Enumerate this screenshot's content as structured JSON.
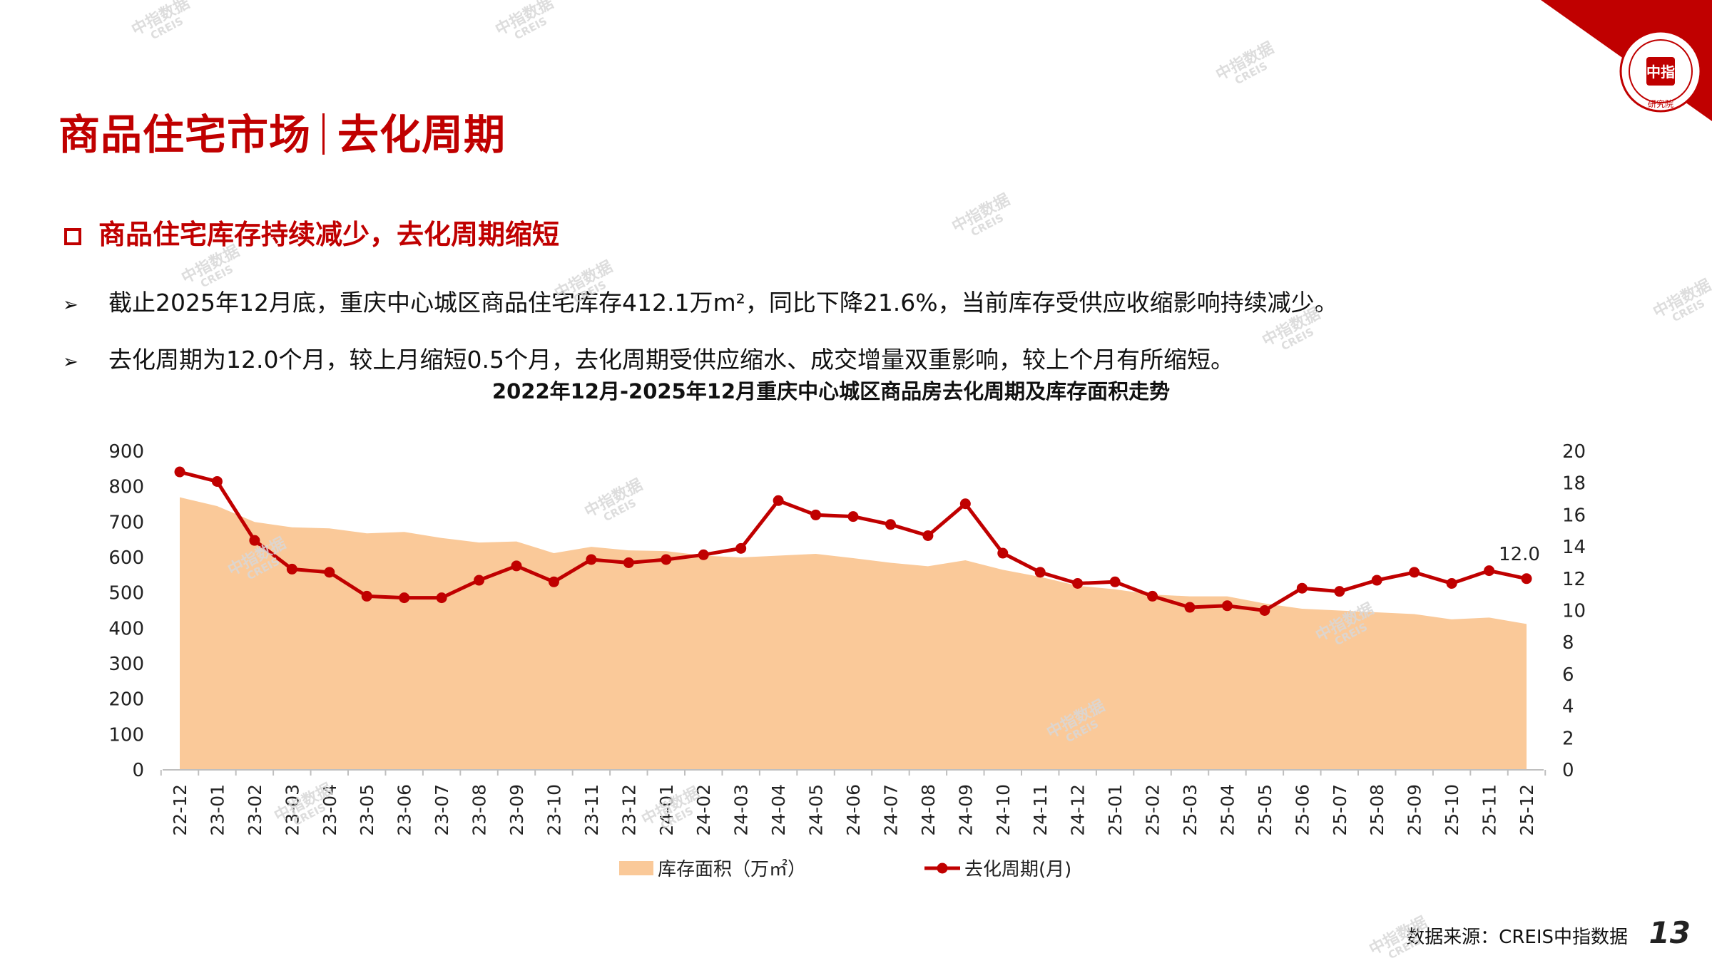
{
  "header": {
    "title_left": "商品住宅市场",
    "title_right": "去化周期"
  },
  "subheading": "商品住宅库存持续减少，去化周期缩短",
  "bullets": [
    "截止2025年12月底，重庆中心城区商品住宅库存412.1万m²，同比下降21.6%，当前库存受供应收缩影响持续减少。",
    "去化周期为12.0个月，较上月缩短0.5个月，去化周期受供应缩水、成交增量双重影响，较上个月有所缩短。"
  ],
  "brand": {
    "seal_text": "CHINA INDEX ACADEMY",
    "seal_center": "中指",
    "seal_bottom": "研究院",
    "accent": "#c00000",
    "watermark_cn": "中指数据",
    "watermark_en": "CREIS"
  },
  "chart_data": {
    "type": "area+line",
    "title": "2022年12月-2025年12月重庆中心城区商品房去化周期及库存面积走势",
    "categories": [
      "22-12",
      "23-01",
      "23-02",
      "23-03",
      "23-04",
      "23-05",
      "23-06",
      "23-07",
      "23-08",
      "23-09",
      "23-10",
      "23-11",
      "23-12",
      "24-01",
      "24-02",
      "24-03",
      "24-04",
      "24-05",
      "24-06",
      "24-07",
      "24-08",
      "24-09",
      "24-10",
      "24-11",
      "24-12",
      "25-01",
      "25-02",
      "25-03",
      "25-04",
      "25-05",
      "25-06",
      "25-07",
      "25-08",
      "25-09",
      "25-10",
      "25-11",
      "25-12"
    ],
    "series": [
      {
        "name": "库存面积（万㎡）",
        "type": "area",
        "axis": "left",
        "color": "#fac999",
        "values": [
          770,
          745,
          700,
          685,
          682,
          668,
          672,
          655,
          642,
          645,
          612,
          630,
          620,
          618,
          605,
          600,
          605,
          610,
          598,
          585,
          575,
          592,
          565,
          545,
          520,
          510,
          495,
          490,
          490,
          470,
          455,
          450,
          445,
          440,
          425,
          430,
          412
        ]
      },
      {
        "name": "去化周期(月)",
        "type": "line",
        "axis": "right",
        "color": "#c00000",
        "values": [
          18.7,
          18.1,
          14.4,
          12.6,
          12.4,
          10.9,
          10.8,
          10.8,
          11.9,
          12.8,
          11.8,
          13.2,
          13.0,
          13.2,
          13.5,
          13.9,
          16.9,
          16.0,
          15.9,
          15.4,
          14.7,
          16.7,
          13.6,
          12.4,
          11.7,
          11.8,
          10.9,
          10.2,
          10.3,
          10.0,
          11.4,
          11.2,
          11.9,
          12.4,
          11.7,
          12.5,
          12.0
        ]
      }
    ],
    "y_left": {
      "min": 0,
      "max": 900,
      "step": 100
    },
    "y_right": {
      "min": 0,
      "max": 20,
      "step": 2
    },
    "data_label": "12.0",
    "legend_position": "bottom"
  },
  "source": "数据来源：CREIS中指数据",
  "page_number": "13"
}
